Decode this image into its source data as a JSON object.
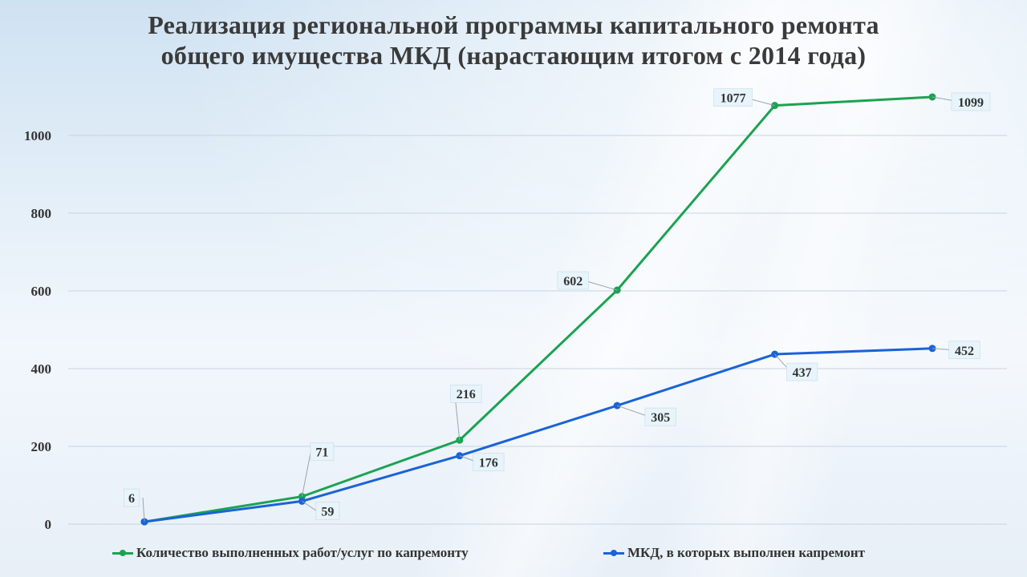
{
  "title_line1": "Реализация региональной программы капитального ремонта",
  "title_line2": "общего имущества МКД (нарастающим итогом с 2014 года)",
  "chart_data": {
    "type": "line",
    "title": "Реализация региональной программы капитального ремонта общего имущества МКД (нарастающим итогом с 2014 года)",
    "x_count": 6,
    "ylim": [
      0,
      1100
    ],
    "yticks": [
      0,
      200,
      400,
      600,
      800,
      1000
    ],
    "grid": true,
    "legend_position": "bottom",
    "series": [
      {
        "name": "Количество выполненных работ/услуг по капремонту",
        "color": "#1aa352",
        "values": [
          6,
          71,
          216,
          602,
          1077,
          1099
        ],
        "labels": [
          "6",
          "71",
          "216",
          "602",
          "1077",
          "1099"
        ]
      },
      {
        "name": "МКД, в которых выполнен капремонт",
        "color": "#1a63d8",
        "values": [
          6,
          59,
          176,
          305,
          437,
          452
        ],
        "labels": [
          "",
          "59",
          "176",
          "305",
          "437",
          "452"
        ]
      }
    ]
  }
}
